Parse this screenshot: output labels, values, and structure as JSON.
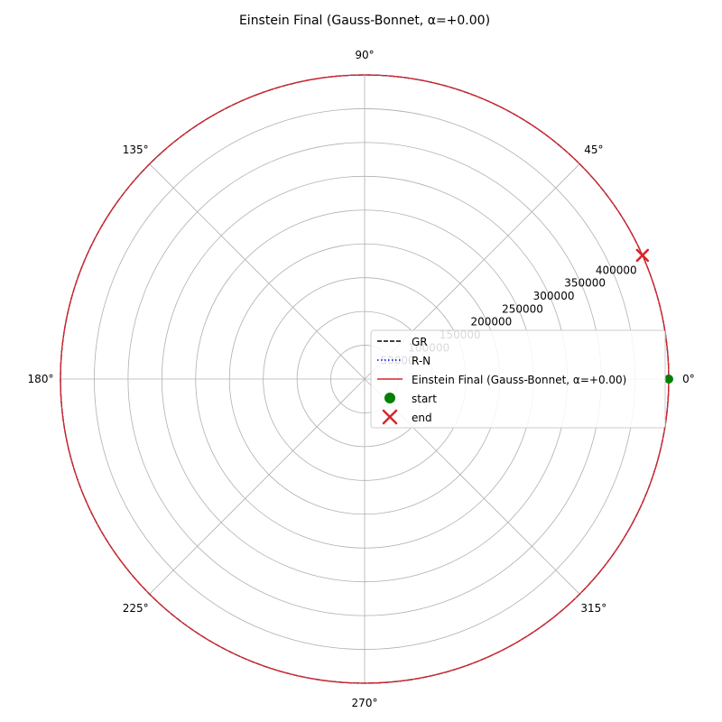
{
  "chart_data": {
    "type": "polar-line",
    "title": "Einstein Final (Gauss-Bonnet, α=+0.00)",
    "angle_ticks": [
      "0°",
      "45°",
      "90°",
      "135°",
      "180°",
      "225°",
      "270°",
      "315°"
    ],
    "angle_tick_values_deg": [
      0,
      45,
      90,
      135,
      180,
      225,
      270,
      315
    ],
    "radial_ticks": [
      "50000",
      "100000",
      "150000",
      "200000",
      "250000",
      "300000",
      "350000",
      "400000"
    ],
    "radial_tick_values": [
      50000,
      100000,
      150000,
      200000,
      250000,
      300000,
      350000,
      400000
    ],
    "rlim": [
      0,
      450000
    ],
    "radial_label_angle_deg": 22.5,
    "grid": true,
    "legend_position": "center-right",
    "series": [
      {
        "name": "GR",
        "color": "#000000",
        "style": "dashed",
        "r": 450000,
        "theta_deg": [
          0,
          360
        ]
      },
      {
        "name": "R-N",
        "color": "#0000ff",
        "style": "dotted",
        "r": 450000,
        "theta_deg": [
          0,
          360
        ]
      },
      {
        "name": "Einstein Final (Gauss-Bonnet, α=+0.00)",
        "color": "#d62728",
        "style": "solid",
        "r": 450000,
        "theta_deg": [
          0,
          360
        ]
      }
    ],
    "markers": [
      {
        "name": "start",
        "color": "#008000",
        "shape": "circle",
        "r": 450000,
        "theta_deg": 0
      },
      {
        "name": "end",
        "color": "#d62728",
        "shape": "x",
        "r": 450000,
        "theta_deg": 24
      }
    ]
  }
}
